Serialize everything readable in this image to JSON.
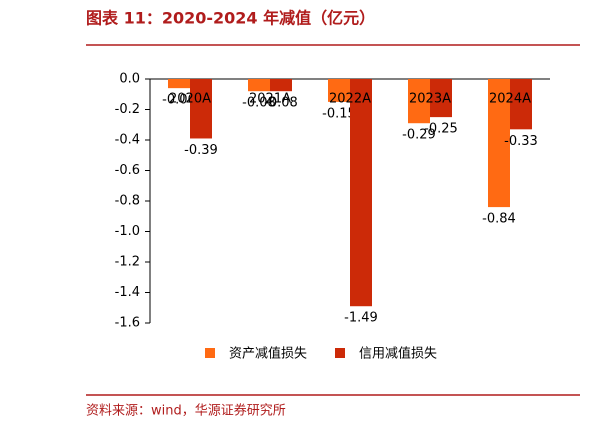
{
  "chart_data": {
    "type": "bar",
    "title": "图表 11：2020-2024 年减值（亿元）",
    "source": "资料来源：wind，华源证券研究所",
    "categories": [
      "2020A",
      "2021A",
      "2022A",
      "2023A",
      "2024A"
    ],
    "series": [
      {
        "name": "资产减值损失",
        "color": "#ff6a13",
        "values": [
          -0.06,
          -0.08,
          -0.15,
          -0.29,
          -0.84
        ]
      },
      {
        "name": "信用减值损失",
        "color": "#cc2a08",
        "values": [
          -0.39,
          -0.08,
          -1.49,
          -0.25,
          -0.33
        ]
      }
    ],
    "ylim": [
      -1.6,
      0
    ],
    "yticks": [
      {
        "value": 0,
        "label": "0.0"
      },
      -0.2,
      -0.4,
      -0.6,
      -0.8,
      {
        "value": -1,
        "label": "-1.0"
      },
      -1.2,
      -1.4,
      -1.6
    ]
  }
}
